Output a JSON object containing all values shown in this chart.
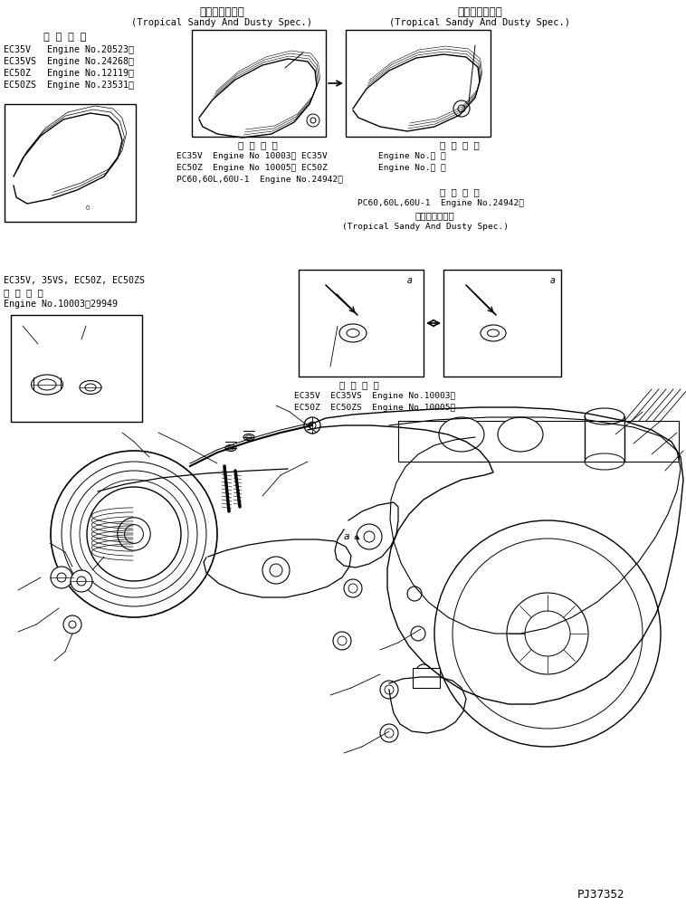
{
  "title_jp1": "熱帯砂塵地仕様",
  "title_jp2": "熱帯砂塵地仕様",
  "subtitle1": "(Tropical Sandy And Dusty Spec.)",
  "subtitle2": "(Tropical Sandy And Dusty Spec.)",
  "tl_header": "適 用 号 機",
  "tl_lines": [
    "EC35V   Engine No.20523～",
    "EC35VS  Engine No.24268～",
    "EC50Z   Engine No.12119～",
    "EC50ZS  Engine No.23531～"
  ],
  "ml_line1": "EC35V, 35VS, EC50Z, EC50ZS",
  "ml_line2": "適 用 号 機",
  "ml_line3": "Engine No.10003～29949",
  "box1_appl": "適 用 号 機",
  "box1_lines": [
    "EC35V  Engine No 10003～ EC35V",
    "EC50Z  Engine No 10005～ EC50Z",
    "PC60,60L,60U-1  Engine No.24942～"
  ],
  "box1r_appl": "適 用 号 機",
  "box1r_lines": [
    "Engine No.： ～",
    "Engine No.： ～"
  ],
  "box2_appl": "適 用 号 機",
  "box2_line1": "PC60,60L,60U-1  Engine No.24942～",
  "box2_jp": "熱帯砂塵地仕様",
  "box2_en": "(Tropical Sandy And Dusty Spec.)",
  "box3_appl": "適 用 号 機",
  "box3_lines": [
    "EC35V  EC35VS  Engine No.10003～",
    "EC50Z  EC50ZS  Engine No.10005～"
  ],
  "part_code": "PJ37352",
  "bg": "#ffffff",
  "fg": "#000000"
}
